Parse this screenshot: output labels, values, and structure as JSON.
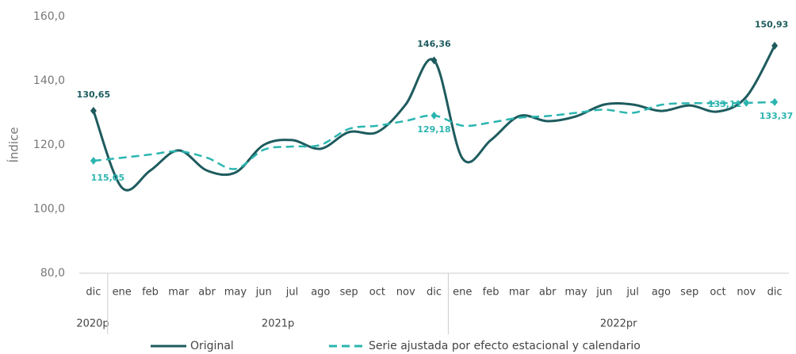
{
  "chart_data": {
    "type": "line",
    "y_label": "Índice",
    "category_groups": [
      {
        "name": "2020p",
        "categories": [
          "dic"
        ]
      },
      {
        "name": "2021p",
        "categories": [
          "ene",
          "feb",
          "mar",
          "abr",
          "may",
          "jun",
          "jul",
          "ago",
          "sep",
          "oct",
          "nov",
          "dic"
        ]
      },
      {
        "name": "2022pr",
        "categories": [
          "ene",
          "feb",
          "mar",
          "abr",
          "may",
          "jun",
          "jul",
          "ago",
          "sep",
          "oct",
          "nov",
          "dic"
        ]
      }
    ],
    "series": [
      {
        "name": "Original",
        "color": "#1e5b5e",
        "dash": false,
        "values": [
          130.65,
          106.7,
          112,
          118.3,
          112,
          111.4,
          120,
          121.5,
          118.8,
          124,
          124,
          132.6,
          146.36,
          115.8,
          121.5,
          129,
          127.4,
          128.9,
          132.6,
          132.6,
          130.6,
          132.3,
          130.4,
          135,
          150.93
        ],
        "value_labels": [
          "130,65",
          null,
          null,
          null,
          null,
          null,
          null,
          null,
          null,
          null,
          null,
          null,
          "146,36",
          null,
          null,
          null,
          null,
          null,
          null,
          null,
          null,
          null,
          null,
          null,
          "150,93"
        ]
      },
      {
        "name": "Serie ajustada por efecto estacional y calendario",
        "color": "#2bb5b0",
        "dash": true,
        "values": [
          115.05,
          116,
          117,
          118,
          116,
          112.5,
          118.5,
          119.5,
          120,
          125,
          126,
          127.5,
          129.18,
          126,
          127,
          128.5,
          129,
          130,
          131,
          130,
          132.5,
          133,
          133,
          133.11,
          133.37
        ],
        "value_labels": [
          "115,05",
          null,
          null,
          null,
          null,
          null,
          null,
          null,
          null,
          null,
          null,
          null,
          "129,18",
          null,
          null,
          null,
          null,
          null,
          null,
          null,
          null,
          null,
          null,
          "133,11",
          "133,37"
        ]
      }
    ],
    "ylim": [
      80,
      160
    ],
    "yticks": [
      {
        "value": 80,
        "label": "80,0"
      },
      {
        "value": 100,
        "label": "100,0"
      },
      {
        "value": 120,
        "label": "120,0"
      },
      {
        "value": 140,
        "label": "140,0"
      },
      {
        "value": 160,
        "label": "160,0"
      }
    ]
  }
}
